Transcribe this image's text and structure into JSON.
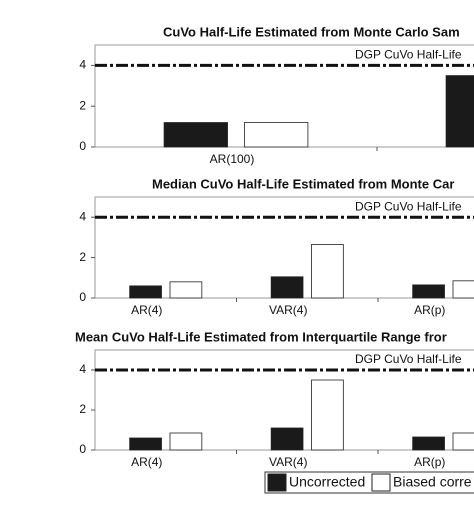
{
  "chart_data": [
    {
      "type": "bar",
      "title": "CuVo Half-Life Estimated from Monte Carlo Sam",
      "categories": [
        "AR(100)",
        null
      ],
      "series": [
        {
          "name": "Uncorrected",
          "color": "#1a1a1a",
          "values": [
            1.2,
            3.5
          ]
        },
        {
          "name": "Biased corre",
          "color": "#ffffff",
          "values": [
            1.2,
            null
          ]
        }
      ],
      "ylim": [
        0,
        5
      ],
      "yticks": [
        0,
        2,
        4
      ],
      "reference_line": {
        "value": 4,
        "label": "DGP CuVo Half-Life"
      }
    },
    {
      "type": "bar",
      "title": "Median CuVo Half-Life Estimated from Monte Car",
      "categories": [
        "AR(4)",
        "VAR(4)",
        "AR(p)"
      ],
      "series": [
        {
          "name": "Uncorrected",
          "color": "#1a1a1a",
          "values": [
            0.6,
            1.05,
            0.65
          ]
        },
        {
          "name": "Biased corre",
          "color": "#ffffff",
          "values": [
            0.8,
            2.65,
            0.85
          ]
        }
      ],
      "ylim": [
        0,
        5
      ],
      "yticks": [
        0,
        2,
        4
      ],
      "reference_line": {
        "value": 4,
        "label": "DGP CuVo Half-Life"
      }
    },
    {
      "type": "bar",
      "title": "Mean CuVo Half-Life Estimated from Interquartile Range fror",
      "categories": [
        "AR(4)",
        "VAR(4)",
        "AR(p)"
      ],
      "series": [
        {
          "name": "Uncorrected",
          "color": "#1a1a1a",
          "values": [
            0.6,
            1.1,
            0.65
          ]
        },
        {
          "name": "Biased corre",
          "color": "#ffffff",
          "values": [
            0.85,
            3.5,
            0.85
          ]
        }
      ],
      "ylim": [
        0,
        5
      ],
      "yticks": [
        0,
        2,
        4
      ],
      "reference_line": {
        "value": 4,
        "label": "DGP CuVo Half-Life"
      },
      "legend": "bottom-right"
    }
  ]
}
